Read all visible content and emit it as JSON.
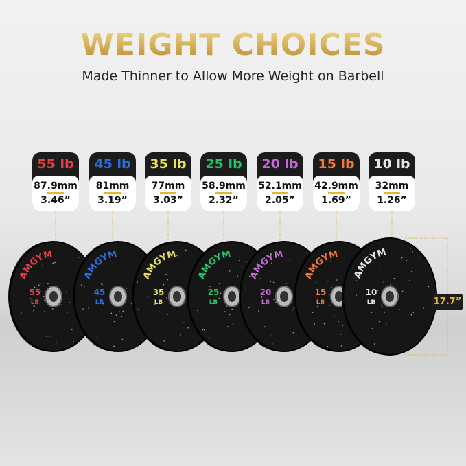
{
  "header": {
    "title": "WEIGHT CHOICES",
    "subtitle": "Made Thinner to Allow More Weight on Barbell"
  },
  "plates": [
    {
      "weight": "55 lb",
      "mm": "87.9mm",
      "inch": "3.46”",
      "color": "#e8404a",
      "plate_label": "55",
      "unit": "LB"
    },
    {
      "weight": "45 lb",
      "mm": "81mm",
      "inch": "3.19”",
      "color": "#2a6fe0",
      "plate_label": "45",
      "unit": "LB"
    },
    {
      "weight": "35 lb",
      "mm": "77mm",
      "inch": "3.03”",
      "color": "#e8e25a",
      "plate_label": "35",
      "unit": "LB"
    },
    {
      "weight": "25 lb",
      "mm": "58.9mm",
      "inch": "2.32”",
      "color": "#22c46a",
      "plate_label": "25",
      "unit": "LB"
    },
    {
      "weight": "20 lb",
      "mm": "52.1mm",
      "inch": "2.05”",
      "color": "#c46ad8",
      "plate_label": "20",
      "unit": "LB"
    },
    {
      "weight": "15 lb",
      "mm": "42.9mm",
      "inch": "1.69”",
      "color": "#f07a3a",
      "plate_label": "15",
      "unit": "LB"
    },
    {
      "weight": "10 lb",
      "mm": "32mm",
      "inch": "1.26”",
      "color": "#e6e6e6",
      "plate_label": "10",
      "unit": "LB"
    }
  ],
  "brand": "AMGYM",
  "diameter": "17.7”"
}
